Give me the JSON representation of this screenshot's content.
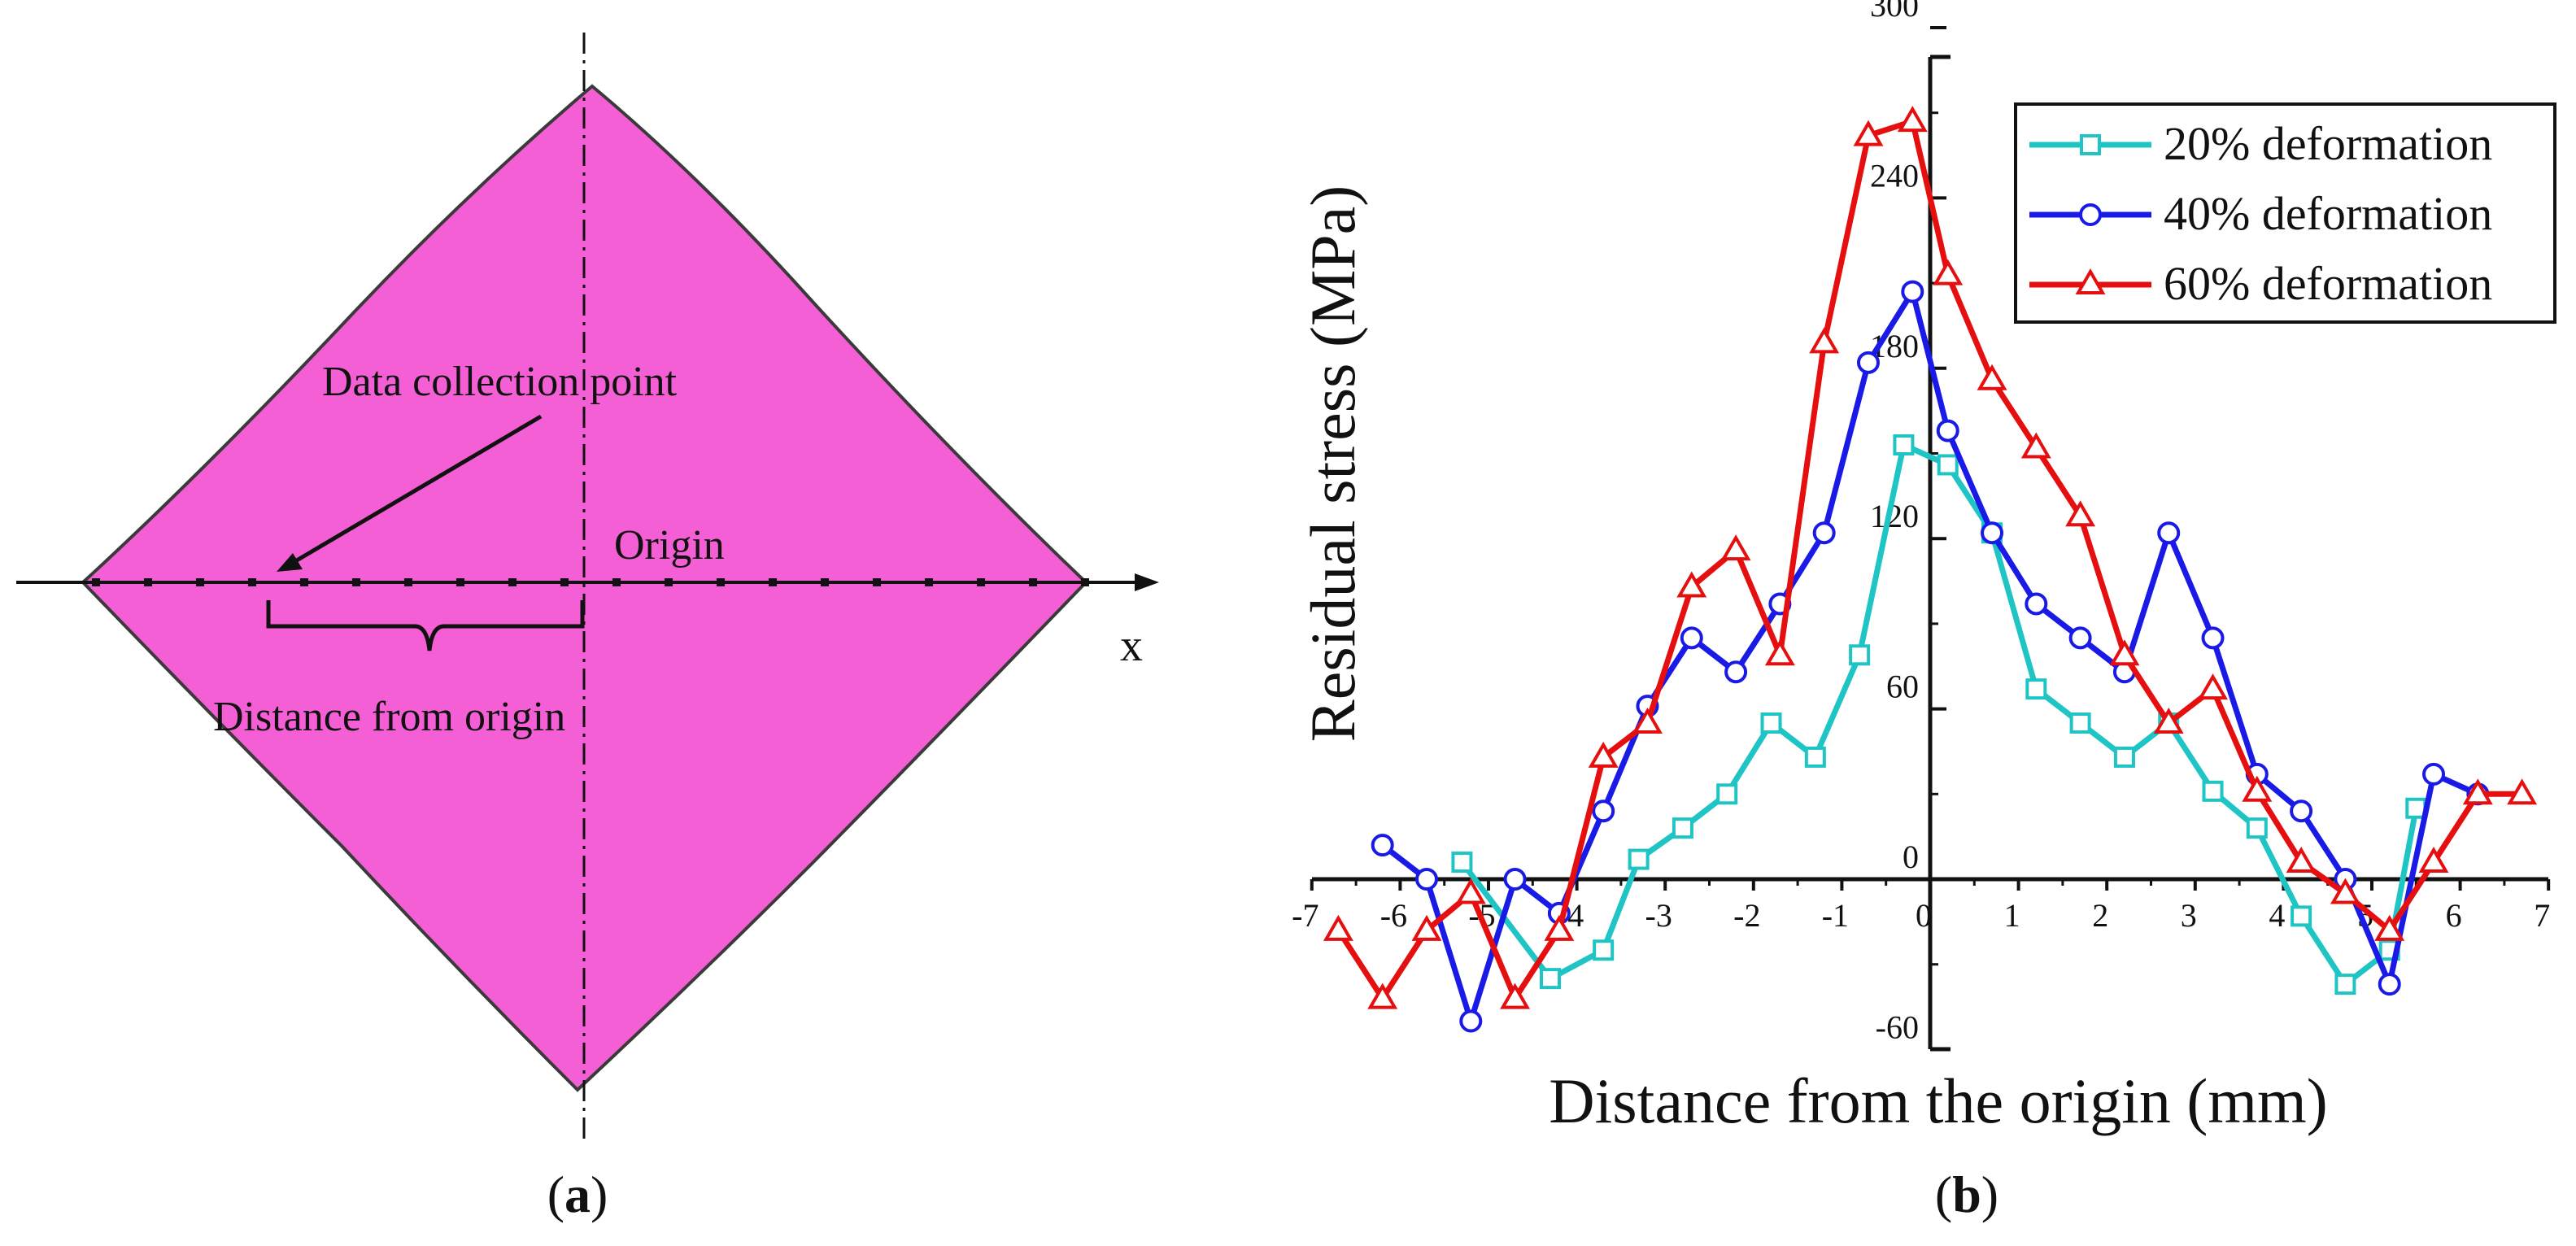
{
  "panel_a": {
    "caption_open": "(",
    "caption_letter": "a",
    "caption_close": ")",
    "label_data_point": "Data collection point",
    "label_origin": "Origin",
    "label_x": "x",
    "label_distance": "Distance from origin",
    "fill_color": "#f55fd6",
    "outline_color": "#3a3a3a"
  },
  "panel_b": {
    "caption_open": "(",
    "caption_letter": "b",
    "caption_close": ")"
  },
  "chart_data": {
    "type": "line",
    "title": "",
    "xlabel": "Distance from the origin (mm)",
    "ylabel": "Residual stress (MPa)",
    "xlim": [
      -7,
      7
    ],
    "ylim": [
      -60,
      300
    ],
    "xticks": [
      "-7",
      "-6",
      "-5",
      "-4",
      "-3",
      "-2",
      "-1",
      "0",
      "1",
      "2",
      "3",
      "4",
      "5",
      "6",
      "7"
    ],
    "yticks": [
      "-60",
      "0",
      "60",
      "120",
      "180",
      "240",
      "300"
    ],
    "grid": false,
    "legend_position": "top-right",
    "series": [
      {
        "name": "20% deformation",
        "color": "#1fc4c4",
        "marker": "square",
        "x": [
          -5.3,
          -4.3,
          -3.7,
          -3.3,
          -2.8,
          -2.3,
          -1.8,
          -1.3,
          -0.8,
          -0.3,
          0.2,
          0.7,
          1.2,
          1.7,
          2.2,
          2.7,
          3.2,
          3.7,
          4.2,
          4.7,
          5.2,
          5.5
        ],
        "y": [
          6,
          -35,
          -25,
          7,
          18,
          30,
          55,
          43,
          79,
          153,
          146,
          122,
          67,
          55,
          43,
          55,
          31,
          18,
          -13,
          -37,
          -25,
          25
        ]
      },
      {
        "name": "40% deformation",
        "color": "#1a1ae6",
        "marker": "circle",
        "x": [
          -6.2,
          -5.7,
          -5.2,
          -4.7,
          -4.2,
          -3.7,
          -3.2,
          -2.7,
          -2.2,
          -1.7,
          -1.2,
          -0.7,
          -0.2,
          0.2,
          0.7,
          1.2,
          1.7,
          2.2,
          2.7,
          3.2,
          3.7,
          4.2,
          4.7,
          5.2,
          5.7,
          6.2
        ],
        "y": [
          12,
          0,
          -50,
          0,
          -12,
          24,
          61,
          85,
          73,
          97,
          122,
          182,
          207,
          158,
          122,
          97,
          85,
          73,
          122,
          85,
          37,
          24,
          0,
          -37,
          37,
          30
        ]
      },
      {
        "name": "60% deformation",
        "color": "#e60f0f",
        "marker": "triangle",
        "x": [
          -6.7,
          -6.2,
          -5.7,
          -5.2,
          -4.7,
          -4.2,
          -3.7,
          -3.2,
          -2.7,
          -2.2,
          -1.7,
          -1.2,
          -0.7,
          -0.2,
          0.2,
          0.7,
          1.2,
          1.7,
          2.2,
          2.7,
          3.2,
          3.7,
          4.2,
          4.7,
          5.2,
          5.7,
          6.2,
          6.7
        ],
        "y": [
          -18,
          -42,
          -18,
          -5,
          -42,
          -18,
          43,
          55,
          103,
          116,
          79,
          189,
          262,
          267,
          213,
          176,
          152,
          128,
          79,
          55,
          67,
          31,
          6,
          -5,
          -18,
          6,
          30,
          30
        ]
      }
    ]
  }
}
